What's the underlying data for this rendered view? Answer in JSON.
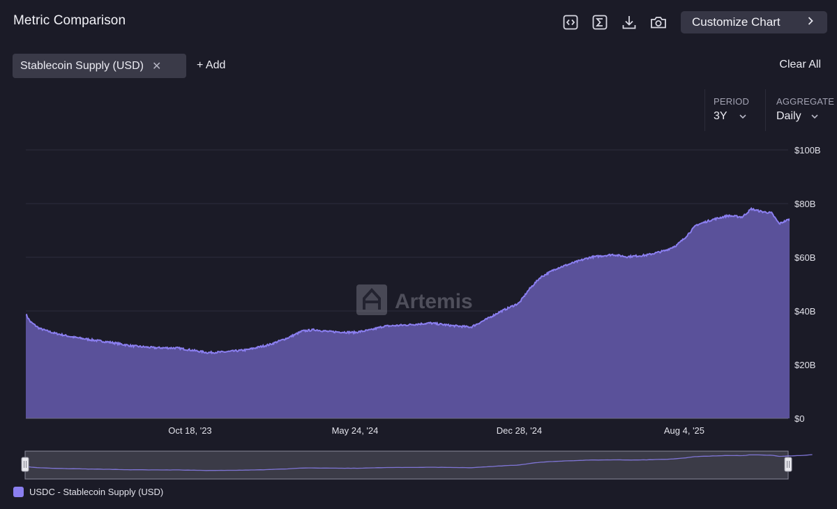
{
  "header": {
    "title": "Metric Comparison",
    "customize_label": "Customize Chart"
  },
  "toolbar": {
    "icons": [
      "embed-code-icon",
      "sigma-icon",
      "download-icon",
      "camera-icon"
    ]
  },
  "metric_chip": {
    "label": "Stablecoin Supply (USD)"
  },
  "add_label": "+ Add",
  "clear_label": "Clear All",
  "period": {
    "label": "PERIOD",
    "value": "3Y"
  },
  "aggregate": {
    "label": "AGGREGATE",
    "value": "Daily"
  },
  "watermark": "Artemis",
  "colors": {
    "background": "#1b1b27",
    "series": "#8b7ff0",
    "area_fill": "#5a519a",
    "grid": "#2e2e3c"
  },
  "chart_data": {
    "type": "area",
    "title": "",
    "xlabel": "",
    "ylabel": "",
    "y_unit": "USD",
    "ylim": [
      0,
      100
    ],
    "y_ticks": [
      "$0",
      "$20B",
      "$40B",
      "$60B",
      "$80B",
      "$100B"
    ],
    "x_range": [
      "2023-03-14",
      "2025-12-20"
    ],
    "x_ticks": [
      {
        "label": "Oct 18, '23",
        "date": "2023-10-18"
      },
      {
        "label": "May 24, '24",
        "date": "2024-05-24"
      },
      {
        "label": "Dec 28, '24",
        "date": "2024-12-28"
      },
      {
        "label": "Aug 4, '25",
        "date": "2025-08-04"
      }
    ],
    "grid": true,
    "legend_position": "bottom-left",
    "series": [
      {
        "name": "USDC - Stablecoin Supply (USD)",
        "unit": "billions USD",
        "points": [
          [
            "2023-03-14",
            38.8
          ],
          [
            "2023-03-20",
            36.0
          ],
          [
            "2023-04-01",
            33.5
          ],
          [
            "2023-04-20",
            31.8
          ],
          [
            "2023-05-15",
            30.3
          ],
          [
            "2023-06-10",
            29.2
          ],
          [
            "2023-07-05",
            28.3
          ],
          [
            "2023-08-01",
            27.0
          ],
          [
            "2023-09-01",
            26.3
          ],
          [
            "2023-10-01",
            26.2
          ],
          [
            "2023-10-18",
            25.5
          ],
          [
            "2023-11-10",
            24.5
          ],
          [
            "2023-12-01",
            24.7
          ],
          [
            "2024-01-01",
            25.5
          ],
          [
            "2024-02-01",
            27.5
          ],
          [
            "2024-02-25",
            30.0
          ],
          [
            "2024-03-15",
            32.5
          ],
          [
            "2024-04-01",
            33.0
          ],
          [
            "2024-04-20",
            32.3
          ],
          [
            "2024-05-24",
            32.0
          ],
          [
            "2024-06-15",
            33.0
          ],
          [
            "2024-07-01",
            34.3
          ],
          [
            "2024-08-01",
            34.8
          ],
          [
            "2024-09-01",
            35.5
          ],
          [
            "2024-10-01",
            34.5
          ],
          [
            "2024-10-25",
            34.0
          ],
          [
            "2024-11-15",
            37.0
          ],
          [
            "2024-12-01",
            39.5
          ],
          [
            "2024-12-28",
            43.0
          ],
          [
            "2025-01-10",
            48.0
          ],
          [
            "2025-01-25",
            52.5
          ],
          [
            "2025-02-15",
            55.8
          ],
          [
            "2025-03-05",
            57.5
          ],
          [
            "2025-04-01",
            60.0
          ],
          [
            "2025-05-01",
            61.0
          ],
          [
            "2025-05-20",
            60.2
          ],
          [
            "2025-06-15",
            60.8
          ],
          [
            "2025-07-10",
            62.5
          ],
          [
            "2025-07-25",
            64.5
          ],
          [
            "2025-08-04",
            67.0
          ],
          [
            "2025-08-20",
            72.0
          ],
          [
            "2025-09-10",
            74.0
          ],
          [
            "2025-10-01",
            75.5
          ],
          [
            "2025-10-20",
            75.0
          ],
          [
            "2025-11-01",
            78.0
          ],
          [
            "2025-11-15",
            77.0
          ],
          [
            "2025-11-28",
            76.5
          ],
          [
            "2025-12-08",
            72.5
          ],
          [
            "2025-12-20",
            74.0
          ],
          [
            "2026-01-10",
            76.0
          ],
          [
            "2026-01-22",
            79.0
          ]
        ]
      }
    ]
  }
}
